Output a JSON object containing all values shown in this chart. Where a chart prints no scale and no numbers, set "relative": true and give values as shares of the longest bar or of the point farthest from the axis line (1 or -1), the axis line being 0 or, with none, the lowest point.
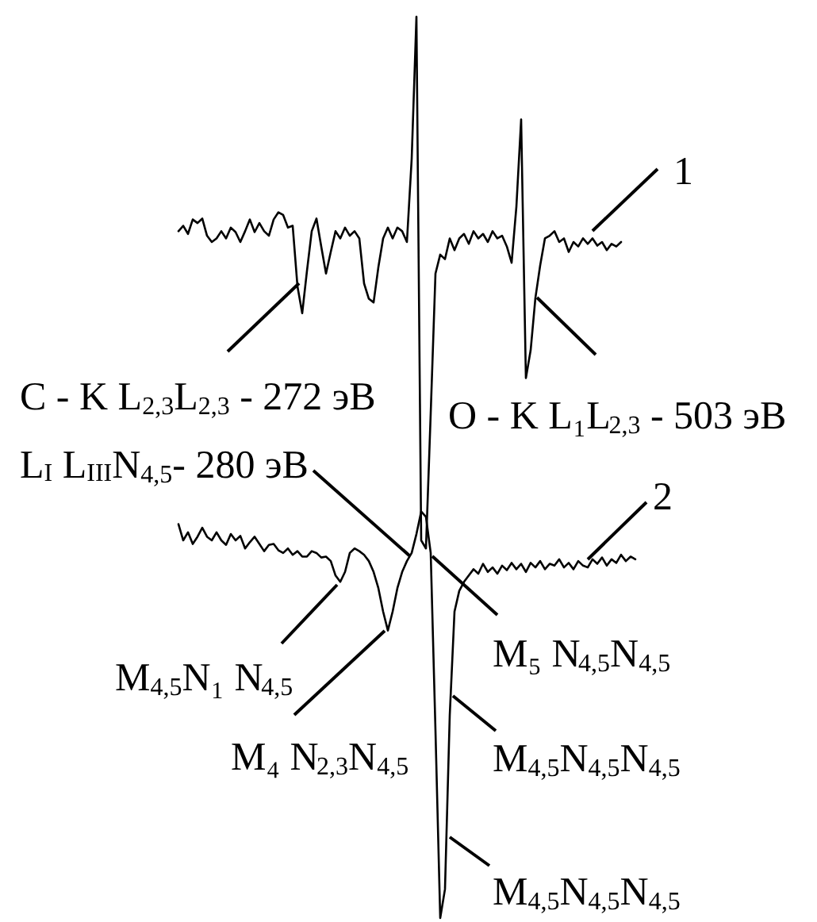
{
  "chart_data": {
    "type": "line",
    "relative": true,
    "categories": [
      null,
      null,
      null,
      null,
      null,
      null,
      null,
      null,
      null,
      null,
      null,
      null,
      null,
      null,
      null,
      null,
      null,
      null,
      null,
      null,
      null,
      null,
      null,
      null,
      null,
      null,
      null,
      null,
      null,
      null,
      null,
      null,
      null,
      null,
      null,
      null,
      null,
      null,
      null,
      null,
      null,
      null,
      null,
      null,
      null,
      null,
      null,
      null,
      null,
      null,
      null,
      null,
      null,
      null,
      null,
      null,
      null,
      null,
      null,
      null,
      null,
      null,
      null,
      null,
      null,
      null,
      null,
      null,
      null,
      null,
      null,
      null,
      null,
      null,
      null,
      null,
      null,
      null,
      null,
      null,
      null,
      null,
      null,
      null,
      null,
      null,
      null,
      null,
      null,
      null,
      null,
      null,
      null,
      null,
      null,
      null,
      null
    ],
    "series": [
      {
        "name": "1",
        "color": "#000000",
        "values": [
          0.762,
          0.768,
          0.759,
          0.775,
          0.771,
          0.776,
          0.757,
          0.75,
          0.754,
          0.762,
          0.754,
          0.766,
          0.761,
          0.75,
          0.762,
          0.775,
          0.761,
          0.771,
          0.762,
          0.757,
          0.775,
          0.783,
          0.78,
          0.766,
          0.768,
          0.701,
          0.671,
          0.718,
          0.762,
          0.776,
          0.745,
          0.715,
          0.739,
          0.762,
          0.754,
          0.766,
          0.757,
          0.762,
          0.754,
          0.704,
          0.687,
          0.683,
          0.722,
          0.754,
          0.766,
          0.754,
          0.766,
          0.762,
          0.75,
          0.842,
          1,
          0.419,
          0.41,
          0.56,
          0.715,
          0.736,
          0.731,
          0.754,
          0.741,
          0.754,
          0.759,
          0.748,
          0.762,
          0.754,
          0.759,
          0.75,
          0.762,
          0.754,
          0.757,
          0.745,
          0.727,
          0.789,
          0.886,
          0.599,
          0.63,
          0.688,
          0.724,
          0.754,
          0.757,
          0.762,
          0.75,
          0.754,
          0.739,
          0.75,
          0.745,
          0.754,
          0.748,
          0.754,
          0.746,
          0.75,
          0.741,
          0.748,
          0.745,
          0.75,
          null,
          null,
          null
        ]
      },
      {
        "name": "2",
        "color": "#000000",
        "values": [
          0.437,
          0.419,
          0.428,
          0.415,
          0.423,
          0.433,
          0.423,
          0.419,
          0.428,
          0.419,
          0.414,
          0.426,
          0.419,
          0.424,
          0.41,
          0.417,
          0.423,
          0.415,
          0.407,
          0.414,
          0.415,
          0.408,
          0.405,
          0.41,
          0.403,
          0.407,
          0.401,
          0.401,
          0.407,
          0.405,
          0.4,
          0.401,
          0.396,
          0.38,
          0.373,
          0.384,
          0.405,
          0.41,
          0.407,
          0.403,
          0.396,
          0.384,
          0.366,
          0.34,
          0.319,
          0.34,
          0.366,
          0.384,
          0.396,
          0.405,
          0.426,
          0.451,
          0.445,
          0.405,
          0.208,
          0,
          0.032,
          0.225,
          0.34,
          0.363,
          0.373,
          0.38,
          0.387,
          0.382,
          0.393,
          0.384,
          0.389,
          0.382,
          0.391,
          0.386,
          0.394,
          0.387,
          0.393,
          0.384,
          0.394,
          0.389,
          0.396,
          0.387,
          0.393,
          0.391,
          0.398,
          0.389,
          0.394,
          0.387,
          0.396,
          0.391,
          0.389,
          0.398,
          0.393,
          0.4,
          0.391,
          0.398,
          0.394,
          0.403,
          0.396,
          0.401,
          0.398
        ]
      }
    ],
    "annotations": [
      "C - K L$_{2,3}$L$_{2,3}$ - 272 эВ",
      "O - K L₁L$_{2,3}$ - 503 эВ",
      "L$_{I}$ L$_{III}$N$_{4,5}$- 280 эВ",
      "M$_{4,5}$N₁ N$_{4,5}$",
      "M₄ N$_{2,3}$N$_{4,5}$",
      "M₅ N$_{4,5}$N$_{4,5}$",
      "M$_{4,5}$N$_{4,5}$N$_{4,5}$",
      "M$_{4,5}$N$_{4,5}$N$_{4,5}$"
    ]
  }
}
